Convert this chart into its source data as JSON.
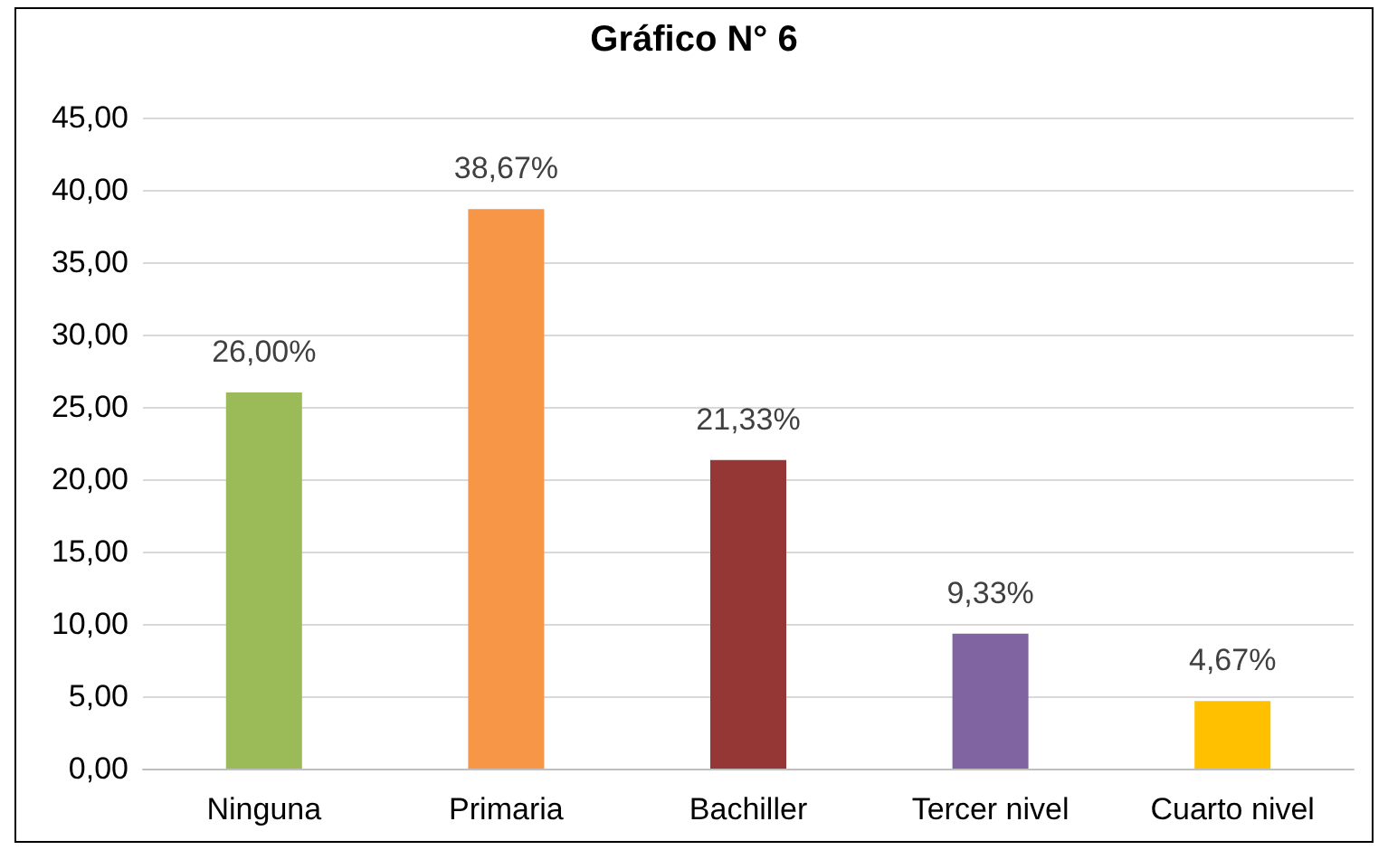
{
  "chart_data": {
    "type": "bar",
    "title": "Gráfico N° 6",
    "categories": [
      "Ninguna",
      "Primaria",
      "Bachiller",
      "Tercer nivel",
      "Cuarto nivel"
    ],
    "values": [
      26.0,
      38.67,
      21.33,
      9.33,
      4.67
    ],
    "value_labels": [
      "26,00%",
      "38,67%",
      "21,33%",
      "9,33%",
      "4,67%"
    ],
    "colors": [
      "#9bbb59",
      "#f79646",
      "#953735",
      "#8064a2",
      "#ffc000"
    ],
    "ylim": [
      0,
      45
    ],
    "yticks": [
      {
        "value": 0,
        "label": "0,00"
      },
      {
        "value": 5,
        "label": "5,00"
      },
      {
        "value": 10,
        "label": "10,00"
      },
      {
        "value": 15,
        "label": "15,00"
      },
      {
        "value": 20,
        "label": "20,00"
      },
      {
        "value": 25,
        "label": "25,00"
      },
      {
        "value": 30,
        "label": "30,00"
      },
      {
        "value": 35,
        "label": "35,00"
      },
      {
        "value": 40,
        "label": "40,00"
      },
      {
        "value": 45,
        "label": "45,00"
      }
    ],
    "grid": "y"
  }
}
